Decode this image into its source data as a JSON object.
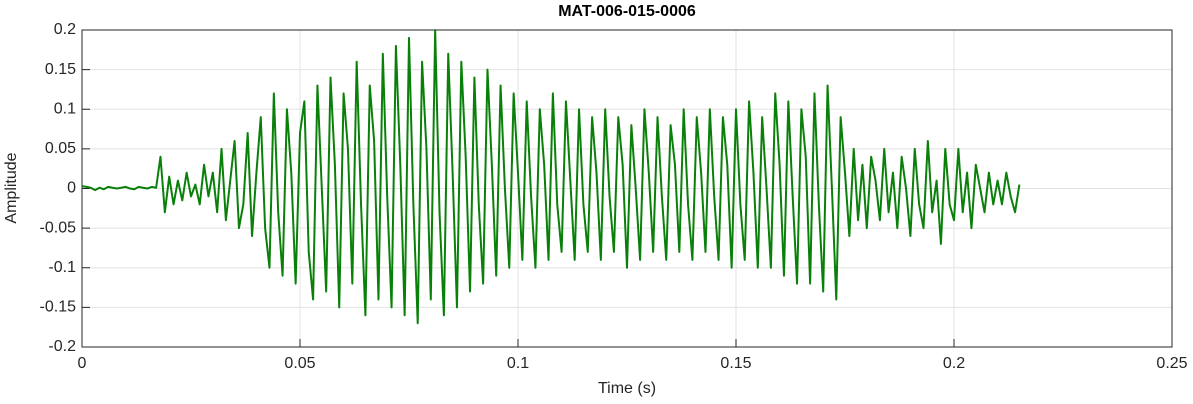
{
  "chart_data": {
    "type": "line",
    "title": "MAT-006-015-0006",
    "xlabel": "Time (s)",
    "ylabel": "Amplitude",
    "xlim": [
      0,
      0.25
    ],
    "xticks": [
      0,
      0.05,
      0.1,
      0.15,
      0.2,
      0.25
    ],
    "ylim": [
      -0.2,
      0.2
    ],
    "yticks": [
      -0.2,
      -0.15,
      -0.1,
      -0.05,
      0,
      0.05,
      0.1,
      0.15,
      0.2
    ],
    "grid": true,
    "x": [
      0,
      0.001,
      0.002,
      0.003,
      0.004,
      0.005,
      0.006,
      0.007,
      0.008,
      0.009,
      0.01,
      0.011,
      0.012,
      0.013,
      0.014,
      0.015,
      0.016,
      0.017,
      0.018,
      0.019,
      0.02,
      0.021,
      0.022,
      0.023,
      0.024,
      0.025,
      0.026,
      0.027,
      0.028,
      0.029,
      0.03,
      0.031,
      0.032,
      0.033,
      0.034,
      0.035,
      0.036,
      0.037,
      0.038,
      0.039,
      0.04,
      0.041,
      0.042,
      0.043,
      0.044,
      0.045,
      0.046,
      0.047,
      0.048,
      0.049,
      0.05,
      0.051,
      0.052,
      0.053,
      0.054,
      0.055,
      0.056,
      0.057,
      0.058,
      0.059,
      0.06,
      0.061,
      0.062,
      0.063,
      0.064,
      0.065,
      0.066,
      0.067,
      0.068,
      0.069,
      0.07,
      0.071,
      0.072,
      0.073,
      0.074,
      0.075,
      0.076,
      0.077,
      0.078,
      0.079,
      0.08,
      0.081,
      0.082,
      0.083,
      0.084,
      0.085,
      0.086,
      0.087,
      0.088,
      0.089,
      0.09,
      0.091,
      0.092,
      0.093,
      0.094,
      0.095,
      0.096,
      0.097,
      0.098,
      0.099,
      0.1,
      0.101,
      0.102,
      0.103,
      0.104,
      0.105,
      0.106,
      0.107,
      0.108,
      0.109,
      0.11,
      0.111,
      0.112,
      0.113,
      0.114,
      0.115,
      0.116,
      0.117,
      0.118,
      0.119,
      0.12,
      0.121,
      0.122,
      0.123,
      0.124,
      0.125,
      0.126,
      0.127,
      0.128,
      0.129,
      0.13,
      0.131,
      0.132,
      0.133,
      0.134,
      0.135,
      0.136,
      0.137,
      0.138,
      0.139,
      0.14,
      0.141,
      0.142,
      0.143,
      0.144,
      0.145,
      0.146,
      0.147,
      0.148,
      0.149,
      0.15,
      0.151,
      0.152,
      0.153,
      0.154,
      0.155,
      0.156,
      0.157,
      0.158,
      0.159,
      0.16,
      0.161,
      0.162,
      0.163,
      0.164,
      0.165,
      0.166,
      0.167,
      0.168,
      0.169,
      0.17,
      0.171,
      0.172,
      0.173,
      0.174,
      0.175,
      0.176,
      0.177,
      0.178,
      0.179,
      0.18,
      0.181,
      0.182,
      0.183,
      0.184,
      0.185,
      0.186,
      0.187,
      0.188,
      0.189,
      0.19,
      0.191,
      0.192,
      0.193,
      0.194,
      0.195,
      0.196,
      0.197,
      0.198,
      0.199,
      0.2,
      0.201,
      0.202,
      0.203,
      0.204,
      0.205,
      0.206,
      0.207,
      0.208,
      0.209,
      0.21,
      0.211,
      0.212,
      0.213,
      0.214,
      0.215
    ],
    "series": [
      {
        "color": "#0a800a",
        "values": [
          0.003,
          0.002,
          0.001,
          -0.002,
          0.001,
          -0.001,
          0.002,
          0.001,
          0,
          0.001,
          0.002,
          0,
          -0.001,
          0.002,
          0.001,
          0,
          0.002,
          0.001,
          0.04,
          -0.03,
          0.015,
          -0.02,
          0.01,
          -0.015,
          0.02,
          -0.01,
          0.005,
          -0.02,
          0.03,
          -0.01,
          0.02,
          -0.03,
          0.05,
          -0.04,
          0.01,
          0.06,
          -0.05,
          -0.02,
          0.07,
          -0.06,
          0.02,
          0.09,
          -0.05,
          -0.1,
          0.12,
          -0.03,
          -0.11,
          0.1,
          0.02,
          -0.12,
          0.07,
          0.11,
          -0.08,
          -0.14,
          0.13,
          0,
          -0.13,
          0.14,
          0.03,
          -0.15,
          0.12,
          0.05,
          -0.12,
          0.16,
          -0.02,
          -0.16,
          0.13,
          0.06,
          -0.14,
          0.17,
          -0.01,
          -0.15,
          0.18,
          0.03,
          -0.16,
          0.19,
          -0.02,
          -0.17,
          0.16,
          0.05,
          -0.14,
          0.2,
          -0.03,
          -0.16,
          0.17,
          0.02,
          -0.15,
          0.16,
          0.04,
          -0.13,
          0.14,
          -0.02,
          -0.12,
          0.15,
          0.03,
          -0.11,
          0.13,
          0,
          -0.1,
          0.12,
          0.02,
          -0.09,
          0.11,
          -0.01,
          -0.1,
          0.1,
          0.03,
          -0.09,
          0.12,
          -0.02,
          -0.08,
          0.11,
          0.01,
          -0.09,
          0.1,
          -0.02,
          -0.08,
          0.09,
          0.02,
          -0.09,
          0.1,
          -0.01,
          -0.08,
          0.09,
          0.03,
          -0.1,
          0.08,
          0,
          -0.09,
          0.1,
          0.02,
          -0.08,
          0.09,
          -0.01,
          -0.09,
          0.08,
          0.03,
          -0.08,
          0.1,
          -0.02,
          -0.09,
          0.09,
          0.02,
          -0.08,
          0.1,
          -0.01,
          -0.09,
          0.09,
          0.03,
          -0.1,
          0.1,
          -0.02,
          -0.09,
          0.11,
          0.02,
          -0.1,
          0.09,
          0,
          -0.1,
          0.12,
          0.03,
          -0.11,
          0.11,
          -0.01,
          -0.12,
          0.1,
          0.04,
          -0.12,
          0.12,
          -0.02,
          -0.13,
          0.13,
          0,
          -0.14,
          0.09,
          0.02,
          -0.06,
          0.05,
          -0.04,
          0.03,
          -0.05,
          0.04,
          0.01,
          -0.04,
          0.05,
          -0.03,
          0.02,
          -0.05,
          0.04,
          0,
          -0.06,
          0.05,
          -0.02,
          -0.05,
          0.06,
          -0.03,
          0.01,
          -0.07,
          0.05,
          -0.02,
          -0.04,
          0.05,
          -0.03,
          0.02,
          -0.05,
          0.03,
          0,
          -0.03,
          0.02,
          -0.02,
          0.01,
          -0.02,
          0.02,
          -0.01,
          -0.03,
          0.005
        ]
      }
    ]
  }
}
